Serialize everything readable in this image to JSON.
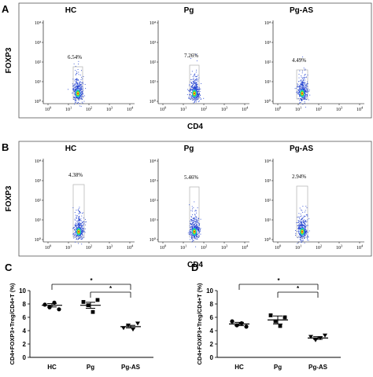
{
  "panel_letters": {
    "a": "A",
    "b": "B",
    "c": "C",
    "d": "D"
  },
  "flow": {
    "groups": [
      "HC",
      "Pg",
      "Pg-AS"
    ],
    "y_label": "FOXP3",
    "x_label": "CD4",
    "y_ticks": [
      "10⁰",
      "10¹",
      "10²",
      "10³",
      "10⁴"
    ],
    "x_tick": "10",
    "row_a": {
      "percentages": [
        "6.54%",
        "7.26%",
        "4.49%"
      ]
    },
    "row_b": {
      "percentages": [
        "4.38%",
        "5.46%",
        "2.94%"
      ]
    }
  },
  "colors": {
    "frame": "#555555",
    "dots_blue": "#1f3fcf",
    "dots_cyan": "#22c7e0",
    "dots_green": "#38d13a",
    "dots_yellow": "#f4e21d",
    "dots_red": "#ec2216",
    "gate": "#b0b0b0"
  },
  "chart_data": [
    {
      "panel": "C",
      "type": "scatter",
      "categories": [
        "HC",
        "Pg",
        "Pg-AS"
      ],
      "ylabel": "CD4+FOXP3+Treg/CD4+T (%)",
      "yticks": [
        "0",
        "2",
        "4",
        "6",
        "8",
        "10"
      ],
      "ylim": [
        0,
        10
      ],
      "points": [
        [
          7.9,
          7.5,
          8.2,
          7.2
        ],
        [
          8.3,
          7.8,
          6.8,
          8.6
        ],
        [
          4.4,
          4.8,
          4.2,
          5.1
        ]
      ],
      "means": [
        7.8,
        7.8,
        4.6
      ],
      "sem": [
        0.25,
        0.45,
        0.2
      ],
      "significance": [
        {
          "from": "HC",
          "to": "Pg-AS",
          "label": "*"
        },
        {
          "from": "Pg",
          "to": "Pg-AS",
          "label": "*"
        }
      ]
    },
    {
      "panel": "D",
      "type": "scatter",
      "categories": [
        "HC",
        "Pg",
        "Pg-AS"
      ],
      "ylabel": "CD4+FOXP3+Treg/CD4+T (%)",
      "yticks": [
        "0",
        "2",
        "4",
        "6",
        "8",
        "10"
      ],
      "ylim": [
        0,
        10
      ],
      "points": [
        [
          5.4,
          4.8,
          5.1,
          4.6
        ],
        [
          6.3,
          5.4,
          4.7,
          6.0
        ],
        [
          3.1,
          2.6,
          2.9,
          3.3
        ]
      ],
      "means": [
        5.0,
        5.6,
        2.9
      ],
      "sem": [
        0.25,
        0.6,
        0.2
      ],
      "significance": [
        {
          "from": "HC",
          "to": "Pg-AS",
          "label": "*"
        },
        {
          "from": "Pg",
          "to": "Pg-AS",
          "label": "*"
        }
      ]
    }
  ]
}
